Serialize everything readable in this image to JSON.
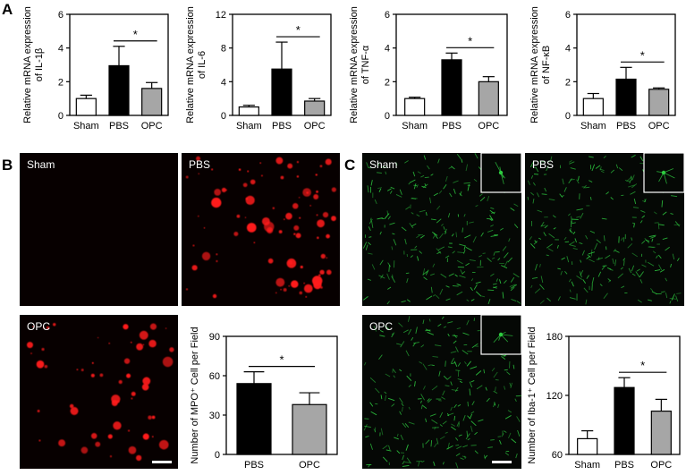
{
  "panels": {
    "A": "A",
    "B": "B",
    "C": "C"
  },
  "micrographs": [
    {
      "label": "Sham",
      "channel": "red",
      "dots": "none"
    },
    {
      "label": "PBS",
      "channel": "red",
      "dots": "many"
    },
    {
      "label": "OPC",
      "channel": "red",
      "dots": "some"
    },
    {
      "label": "Sham",
      "channel": "green",
      "inset": true
    },
    {
      "label": "PBS",
      "channel": "green",
      "inset": true
    },
    {
      "label": "OPC",
      "channel": "green",
      "inset": true
    }
  ],
  "colors": {
    "Sham": "#ffffff",
    "PBS": "#000000",
    "OPC": "#a6a6a6",
    "red_signal": "#ff1a1a",
    "green_signal": "#2ecc40"
  },
  "chart_data": [
    {
      "type": "bar",
      "ylabel": [
        "Relative mRNA expression",
        "of IL-1β"
      ],
      "categories": [
        "Sham",
        "PBS",
        "OPC"
      ],
      "values": [
        1.0,
        2.95,
        1.6
      ],
      "errors": [
        0.2,
        1.15,
        0.35
      ],
      "ylim": [
        0,
        6
      ],
      "yticks": [
        "0",
        "2",
        "4",
        "6"
      ],
      "sig": {
        "from": 1,
        "to": 2,
        "label": "*"
      }
    },
    {
      "type": "bar",
      "ylabel": [
        "Relative mRNA expression",
        "of IL-6"
      ],
      "categories": [
        "Sham",
        "PBS",
        "OPC"
      ],
      "values": [
        1.0,
        5.5,
        1.7
      ],
      "errors": [
        0.2,
        3.2,
        0.3
      ],
      "ylim": [
        0,
        12
      ],
      "yticks": [
        "0",
        "4",
        "8",
        "12"
      ],
      "sig": {
        "from": 1,
        "to": 2,
        "label": "*"
      }
    },
    {
      "type": "bar",
      "ylabel": [
        "Relative mRNA expression",
        "of TNF-α"
      ],
      "categories": [
        "Sham",
        "PBS",
        "OPC"
      ],
      "values": [
        1.0,
        3.3,
        2.0
      ],
      "errors": [
        0.08,
        0.4,
        0.3
      ],
      "ylim": [
        0,
        6
      ],
      "yticks": [
        "0",
        "2",
        "4",
        "6"
      ],
      "sig": {
        "from": 1,
        "to": 2,
        "label": "*"
      }
    },
    {
      "type": "bar",
      "ylabel": [
        "Relative mRNA expression",
        "of NF-κB"
      ],
      "categories": [
        "Sham",
        "PBS",
        "OPC"
      ],
      "values": [
        1.0,
        2.15,
        1.55
      ],
      "errors": [
        0.3,
        0.7,
        0.08
      ],
      "ylim": [
        0,
        6
      ],
      "yticks": [
        "0",
        "2",
        "4",
        "6"
      ],
      "sig": {
        "from": 1,
        "to": 2,
        "label": "*"
      }
    },
    {
      "type": "bar",
      "ylabel": [
        "Number of MPO⁺ Cell per Field"
      ],
      "categories": [
        "PBS",
        "OPC"
      ],
      "values": [
        54,
        38
      ],
      "errors": [
        9,
        9
      ],
      "ylim": [
        0,
        90
      ],
      "yticks": [
        "0",
        "30",
        "60",
        "90"
      ],
      "sig": {
        "from": 0,
        "to": 1,
        "label": "*"
      }
    },
    {
      "type": "bar",
      "ylabel": [
        "Number of Iba-1⁺ Cell per Field"
      ],
      "categories": [
        "Sham",
        "PBS",
        "OPC"
      ],
      "values": [
        76,
        128,
        104
      ],
      "errors": [
        8,
        10,
        12
      ],
      "ylim": [
        60,
        180
      ],
      "yticks": [
        "60",
        "120",
        "180"
      ],
      "sig": {
        "from": 1,
        "to": 2,
        "label": "*"
      }
    }
  ]
}
